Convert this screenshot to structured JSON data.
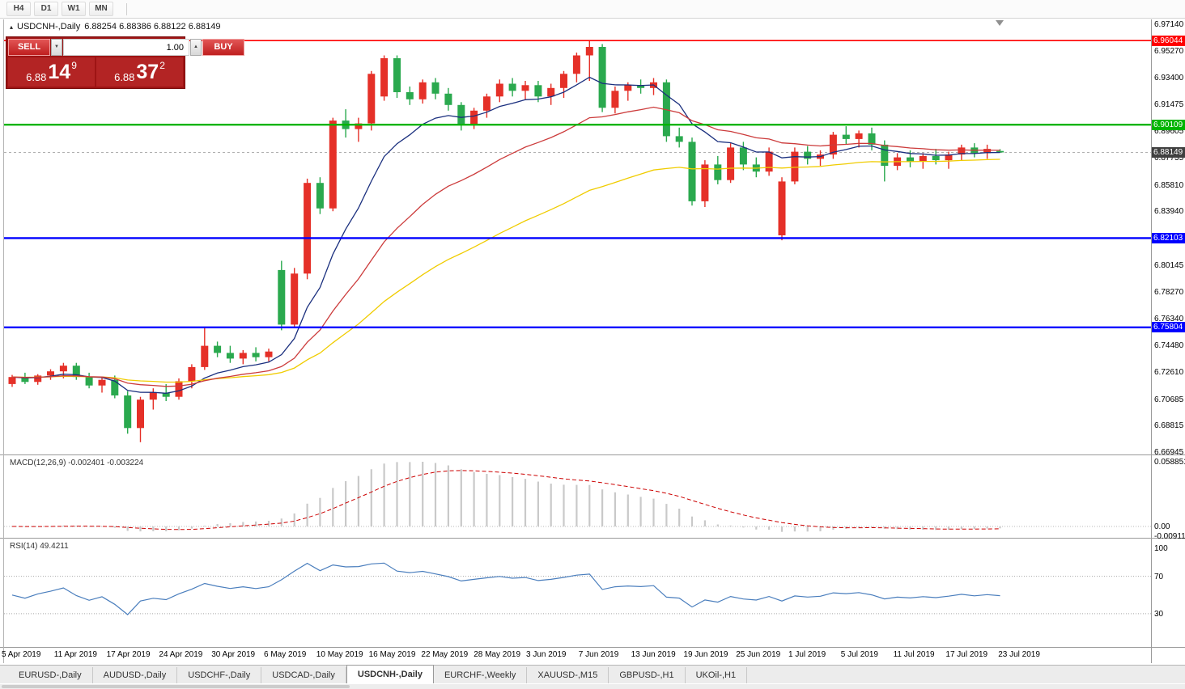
{
  "toolbar": {
    "timeframes": [
      "H4",
      "D1",
      "W1",
      "MN"
    ]
  },
  "chart": {
    "title_marker": "▴",
    "title_symbol": "USDCNH-,Daily",
    "title_ohlc": "6.88254 6.88386 6.88122 6.88149",
    "order_panel": {
      "sell_label": "SELL",
      "buy_label": "BUY",
      "volume": "1.00",
      "spinner_down": "▼",
      "spinner_up": "▲",
      "bid_prefix": "6.88",
      "bid_big": "14",
      "bid_sup": "9",
      "ask_prefix": "6.88",
      "ask_big": "37",
      "ask_sup": "2"
    }
  },
  "chart_data": {
    "type": "candlestick",
    "symbol": "USDCNH",
    "period": "Daily",
    "current_price": 6.88149,
    "ohlc_today": [
      6.88254,
      6.88386,
      6.88122,
      6.88149
    ],
    "y_ticks": [
      "6.97140",
      "6.95270",
      "6.93400",
      "6.91475",
      "6.89605",
      "6.87735",
      "6.85810",
      "6.83940",
      "6.80145",
      "6.78270",
      "6.76340",
      "6.74480",
      "6.72610",
      "6.70685",
      "6.68815",
      "6.66945"
    ],
    "price_lines": [
      {
        "price": 6.96044,
        "label": "6.96044",
        "color": "#ff0000",
        "width": 1.6
      },
      {
        "price": 6.90109,
        "label": "6.90109",
        "color": "#00b400",
        "width": 2.4
      },
      {
        "price": 6.82103,
        "label": "6.82103",
        "color": "#0000ff",
        "width": 2.4
      },
      {
        "price": 6.75804,
        "label": "6.75804",
        "color": "#0000ff",
        "width": 2.4
      }
    ],
    "bid_label": {
      "text": "6.88149",
      "bg": "#404040"
    },
    "x_labels": [
      "5 Apr 2019",
      "11 Apr 2019",
      "17 Apr 2019",
      "24 Apr 2019",
      "30 Apr 2019",
      "6 May 2019",
      "10 May 2019",
      "16 May 2019",
      "22 May 2019",
      "28 May 2019",
      "3 Jun 2019",
      "7 Jun 2019",
      "13 Jun 2019",
      "19 Jun 2019",
      "25 Jun 2019",
      "1 Jul 2019",
      "5 Jul 2019",
      "11 Jul 2019",
      "17 Jul 2019",
      "23 Jul 2019"
    ],
    "candles": [
      [
        6.718,
        6.7245,
        6.716,
        6.723
      ],
      [
        6.723,
        6.726,
        6.718,
        6.7195
      ],
      [
        6.7195,
        6.725,
        6.7175,
        6.724
      ],
      [
        6.724,
        6.7285,
        6.721,
        6.727
      ],
      [
        6.727,
        6.733,
        6.722,
        6.731
      ],
      [
        6.731,
        6.733,
        6.721,
        6.723
      ],
      [
        6.723,
        6.726,
        6.715,
        6.717
      ],
      [
        6.717,
        6.723,
        6.712,
        6.721
      ],
      [
        6.721,
        6.724,
        6.708,
        6.71
      ],
      [
        6.71,
        6.713,
        6.683,
        6.687
      ],
      [
        6.687,
        6.709,
        6.677,
        6.707
      ],
      [
        6.707,
        6.715,
        6.7,
        6.712
      ],
      [
        6.712,
        6.718,
        6.706,
        6.709
      ],
      [
        6.709,
        6.722,
        6.707,
        6.72
      ],
      [
        6.72,
        6.732,
        6.715,
        6.73
      ],
      [
        6.73,
        6.758,
        6.728,
        6.745
      ],
      [
        6.745,
        6.748,
        6.737,
        6.74
      ],
      [
        6.74,
        6.745,
        6.733,
        6.736
      ],
      [
        6.736,
        6.742,
        6.732,
        6.74
      ],
      [
        6.74,
        6.744,
        6.734,
        6.737
      ],
      [
        6.737,
        6.743,
        6.734,
        6.741
      ],
      [
        6.7985,
        6.805,
        6.756,
        6.76
      ],
      [
        6.76,
        6.8,
        6.758,
        6.796
      ],
      [
        6.796,
        6.863,
        6.792,
        6.86
      ],
      [
        6.86,
        6.864,
        6.838,
        6.842
      ],
      [
        6.842,
        6.906,
        6.84,
        6.904
      ],
      [
        6.904,
        6.912,
        6.892,
        6.898
      ],
      [
        6.898,
        6.906,
        6.889,
        6.902
      ],
      [
        6.902,
        6.939,
        6.897,
        6.937
      ],
      [
        6.921,
        6.95,
        6.918,
        6.948
      ],
      [
        6.948,
        6.95,
        6.92,
        6.924
      ],
      [
        6.924,
        6.928,
        6.915,
        6.919
      ],
      [
        6.919,
        6.933,
        6.916,
        6.931
      ],
      [
        6.931,
        6.934,
        6.919,
        6.923
      ],
      [
        6.923,
        6.927,
        6.911,
        6.915
      ],
      [
        6.915,
        6.917,
        6.897,
        6.901
      ],
      [
        6.901,
        6.913,
        6.898,
        6.911
      ],
      [
        6.911,
        6.923,
        6.906,
        6.921
      ],
      [
        6.921,
        6.933,
        6.917,
        6.93
      ],
      [
        6.93,
        6.934,
        6.921,
        6.925
      ],
      [
        6.925,
        6.932,
        6.919,
        6.929
      ],
      [
        6.929,
        6.932,
        6.917,
        6.921
      ],
      [
        6.921,
        6.93,
        6.915,
        6.927
      ],
      [
        6.927,
        6.939,
        6.92,
        6.937
      ],
      [
        6.937,
        6.952,
        6.931,
        6.95
      ],
      [
        6.95,
        6.9605,
        6.932,
        6.956
      ],
      [
        6.956,
        6.958,
        6.91,
        6.913
      ],
      [
        6.913,
        6.928,
        6.909,
        6.925
      ],
      [
        6.925,
        6.931,
        6.918,
        6.929
      ],
      [
        6.929,
        6.933,
        6.923,
        6.927
      ],
      [
        6.927,
        6.934,
        6.922,
        6.931
      ],
      [
        6.931,
        6.933,
        6.889,
        6.893
      ],
      [
        6.893,
        6.899,
        6.885,
        6.889
      ],
      [
        6.889,
        6.892,
        6.844,
        6.847
      ],
      [
        6.847,
        6.876,
        6.843,
        6.873
      ],
      [
        6.873,
        6.879,
        6.859,
        6.862
      ],
      [
        6.862,
        6.888,
        6.86,
        6.885
      ],
      [
        6.885,
        6.889,
        6.869,
        6.873
      ],
      [
        6.873,
        6.878,
        6.864,
        6.868
      ],
      [
        6.868,
        6.885,
        6.865,
        6.882
      ],
      [
        6.823,
        6.864,
        6.8195,
        6.861
      ],
      [
        6.861,
        6.885,
        6.859,
        6.882
      ],
      [
        6.882,
        6.886,
        6.873,
        6.877
      ],
      [
        6.877,
        6.883,
        6.872,
        6.88
      ],
      [
        6.88,
        6.896,
        6.877,
        6.894
      ],
      [
        6.894,
        6.9,
        6.887,
        6.891
      ],
      [
        6.891,
        6.897,
        6.885,
        6.895
      ],
      [
        6.895,
        6.899,
        6.883,
        6.887
      ],
      [
        6.887,
        6.89,
        6.861,
        6.872
      ],
      [
        6.872,
        6.881,
        6.869,
        6.878
      ],
      [
        6.878,
        6.883,
        6.871,
        6.875
      ],
      [
        6.875,
        6.881,
        6.87,
        6.879
      ],
      [
        6.879,
        6.884,
        6.873,
        6.876
      ],
      [
        6.876,
        6.882,
        6.87,
        6.88
      ],
      [
        6.88,
        6.887,
        6.876,
        6.885
      ],
      [
        6.885,
        6.888,
        6.878,
        6.881
      ],
      [
        6.881,
        6.887,
        6.877,
        6.884
      ],
      [
        6.88254,
        6.88386,
        6.88122,
        6.88149
      ]
    ],
    "ma_periods": {
      "fast": 9,
      "mid": 21,
      "slow": 44
    },
    "colors": {
      "up": "#e53028",
      "down": "#2aa94e",
      "ma_fast": "#1a2f7e",
      "ma_mid": "#cc3b3b",
      "ma_slow": "#f0cc00",
      "macd_bar": "#c9c9c9",
      "macd_signal": "#cc0000",
      "rsi": "#4a7ebd",
      "bid_line": "#b0b0b0"
    },
    "macd": {
      "label": "MACD(12,26,9) -0.002401 -0.003224",
      "params": [
        12,
        26,
        9
      ],
      "axis_max": "0.058851",
      "axis_zero": "0.00",
      "axis_min": "-0.009116"
    },
    "rsi": {
      "label": "RSI(14) 49.4211",
      "period": 14,
      "value": 49.4211,
      "levels": [
        "100",
        "70",
        "30"
      ]
    }
  },
  "tabs": {
    "items": [
      "EURUSD-,Daily",
      "AUDUSD-,Daily",
      "USDCHF-,Daily",
      "USDCAD-,Daily",
      "USDCNH-,Daily",
      "EURCHF-,Weekly",
      "XAUUSD-,M15",
      "GBPUSD-,H1",
      "UKOil-,H1"
    ],
    "active_index": 4
  }
}
